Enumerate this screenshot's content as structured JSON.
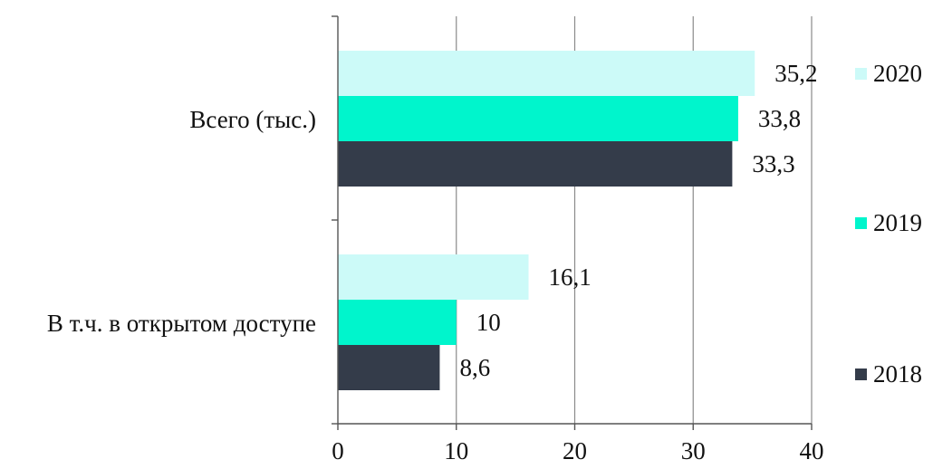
{
  "chart_data": {
    "type": "bar",
    "orientation": "horizontal",
    "categories": [
      "Всего (тыс.)",
      "В т.ч. в открытом доступе"
    ],
    "series": [
      {
        "name": "2020",
        "color": "#ccfaf8",
        "values": [
          35.2,
          16.1
        ],
        "labels": [
          "35,2",
          "16,1"
        ]
      },
      {
        "name": "2019",
        "color": "#00f5cc",
        "values": [
          33.8,
          10
        ],
        "labels": [
          "33,8",
          "10"
        ]
      },
      {
        "name": "2018",
        "color": "#343c4a",
        "values": [
          33.3,
          8.6
        ],
        "labels": [
          "33,3",
          "8,6"
        ]
      }
    ],
    "xlim": [
      0,
      40
    ],
    "xticks": [
      0,
      10,
      20,
      30,
      40
    ],
    "xtick_labels": [
      "0",
      "10",
      "20",
      "30",
      "40"
    ],
    "grid": "vertical",
    "legend_position": "right"
  }
}
